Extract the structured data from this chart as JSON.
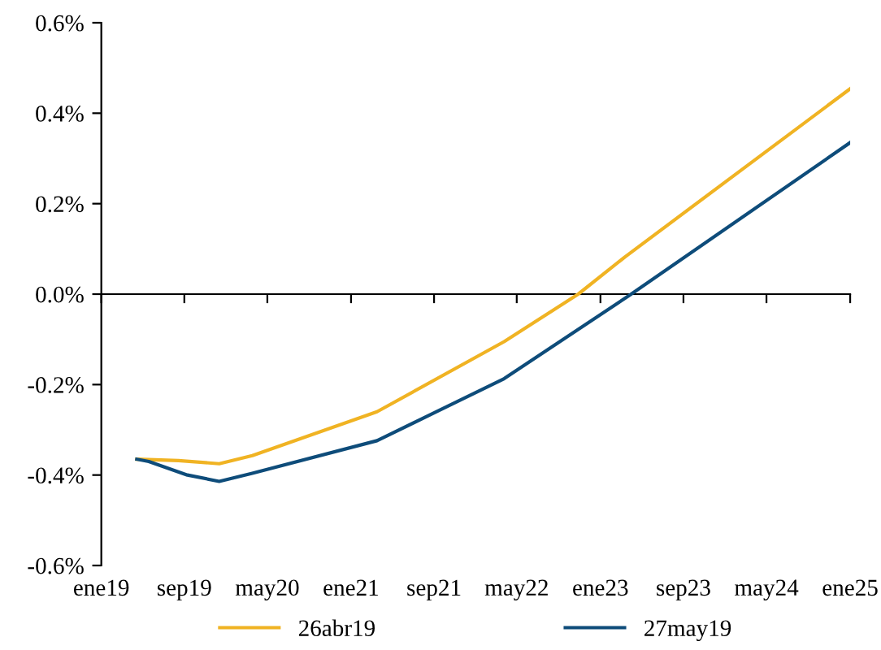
{
  "chart_data": {
    "type": "line",
    "x": [
      "2019-04-15",
      "2019-08-15",
      "2019-12-12",
      "2020-03-18",
      "2021-03-18",
      "2022-03-25",
      "2022-10-28",
      "2023-03-15",
      "2025-01-01"
    ],
    "series": [
      {
        "name": "26abr19",
        "color": "#f0b323",
        "values": [
          -0.365,
          -0.368,
          -0.375,
          -0.357,
          -0.26,
          -0.105,
          0,
          0.083,
          0.454
        ]
      },
      {
        "name": "27may19",
        "color": "#0e4c7a",
        "x": [
          "2019-04-15",
          "2019-05-20",
          "2019-09-10",
          "2019-12-12",
          "2020-03-18",
          "2021-03-18",
          "2022-03-25",
          "2023-04-01",
          "2025-01-01"
        ],
        "values": [
          -0.365,
          -0.37,
          -0.4,
          -0.414,
          -0.396,
          -0.324,
          -0.187,
          0,
          0.335
        ]
      }
    ],
    "xlim": [
      "2019-01-01",
      "2025-01-01"
    ],
    "xticks": [
      {
        "value": "2019-01-01",
        "label": "ene19"
      },
      {
        "value": "2019-09-01",
        "label": "sep19"
      },
      {
        "value": "2020-05-01",
        "label": "may20"
      },
      {
        "value": "2021-01-01",
        "label": "ene21"
      },
      {
        "value": "2021-09-01",
        "label": "sep21"
      },
      {
        "value": "2022-05-01",
        "label": "may22"
      },
      {
        "value": "2023-01-01",
        "label": "ene23"
      },
      {
        "value": "2023-09-01",
        "label": "sep23"
      },
      {
        "value": "2024-05-01",
        "label": "may24"
      },
      {
        "value": "2025-01-01",
        "label": "ene25"
      }
    ],
    "ylim": [
      -0.6,
      0.6
    ],
    "yticks": [
      {
        "value": -0.6,
        "label": "-0.6%"
      },
      {
        "value": -0.4,
        "label": "-0.4%"
      },
      {
        "value": -0.2,
        "label": "-0.2%"
      },
      {
        "value": 0,
        "label": "0.0%"
      },
      {
        "value": 0.2,
        "label": "0.2%"
      },
      {
        "value": 0.4,
        "label": "0.4%"
      },
      {
        "value": 0.6,
        "label": "0.6%"
      }
    ],
    "legend": "bottom",
    "marker": "none",
    "line_style": "solid"
  }
}
